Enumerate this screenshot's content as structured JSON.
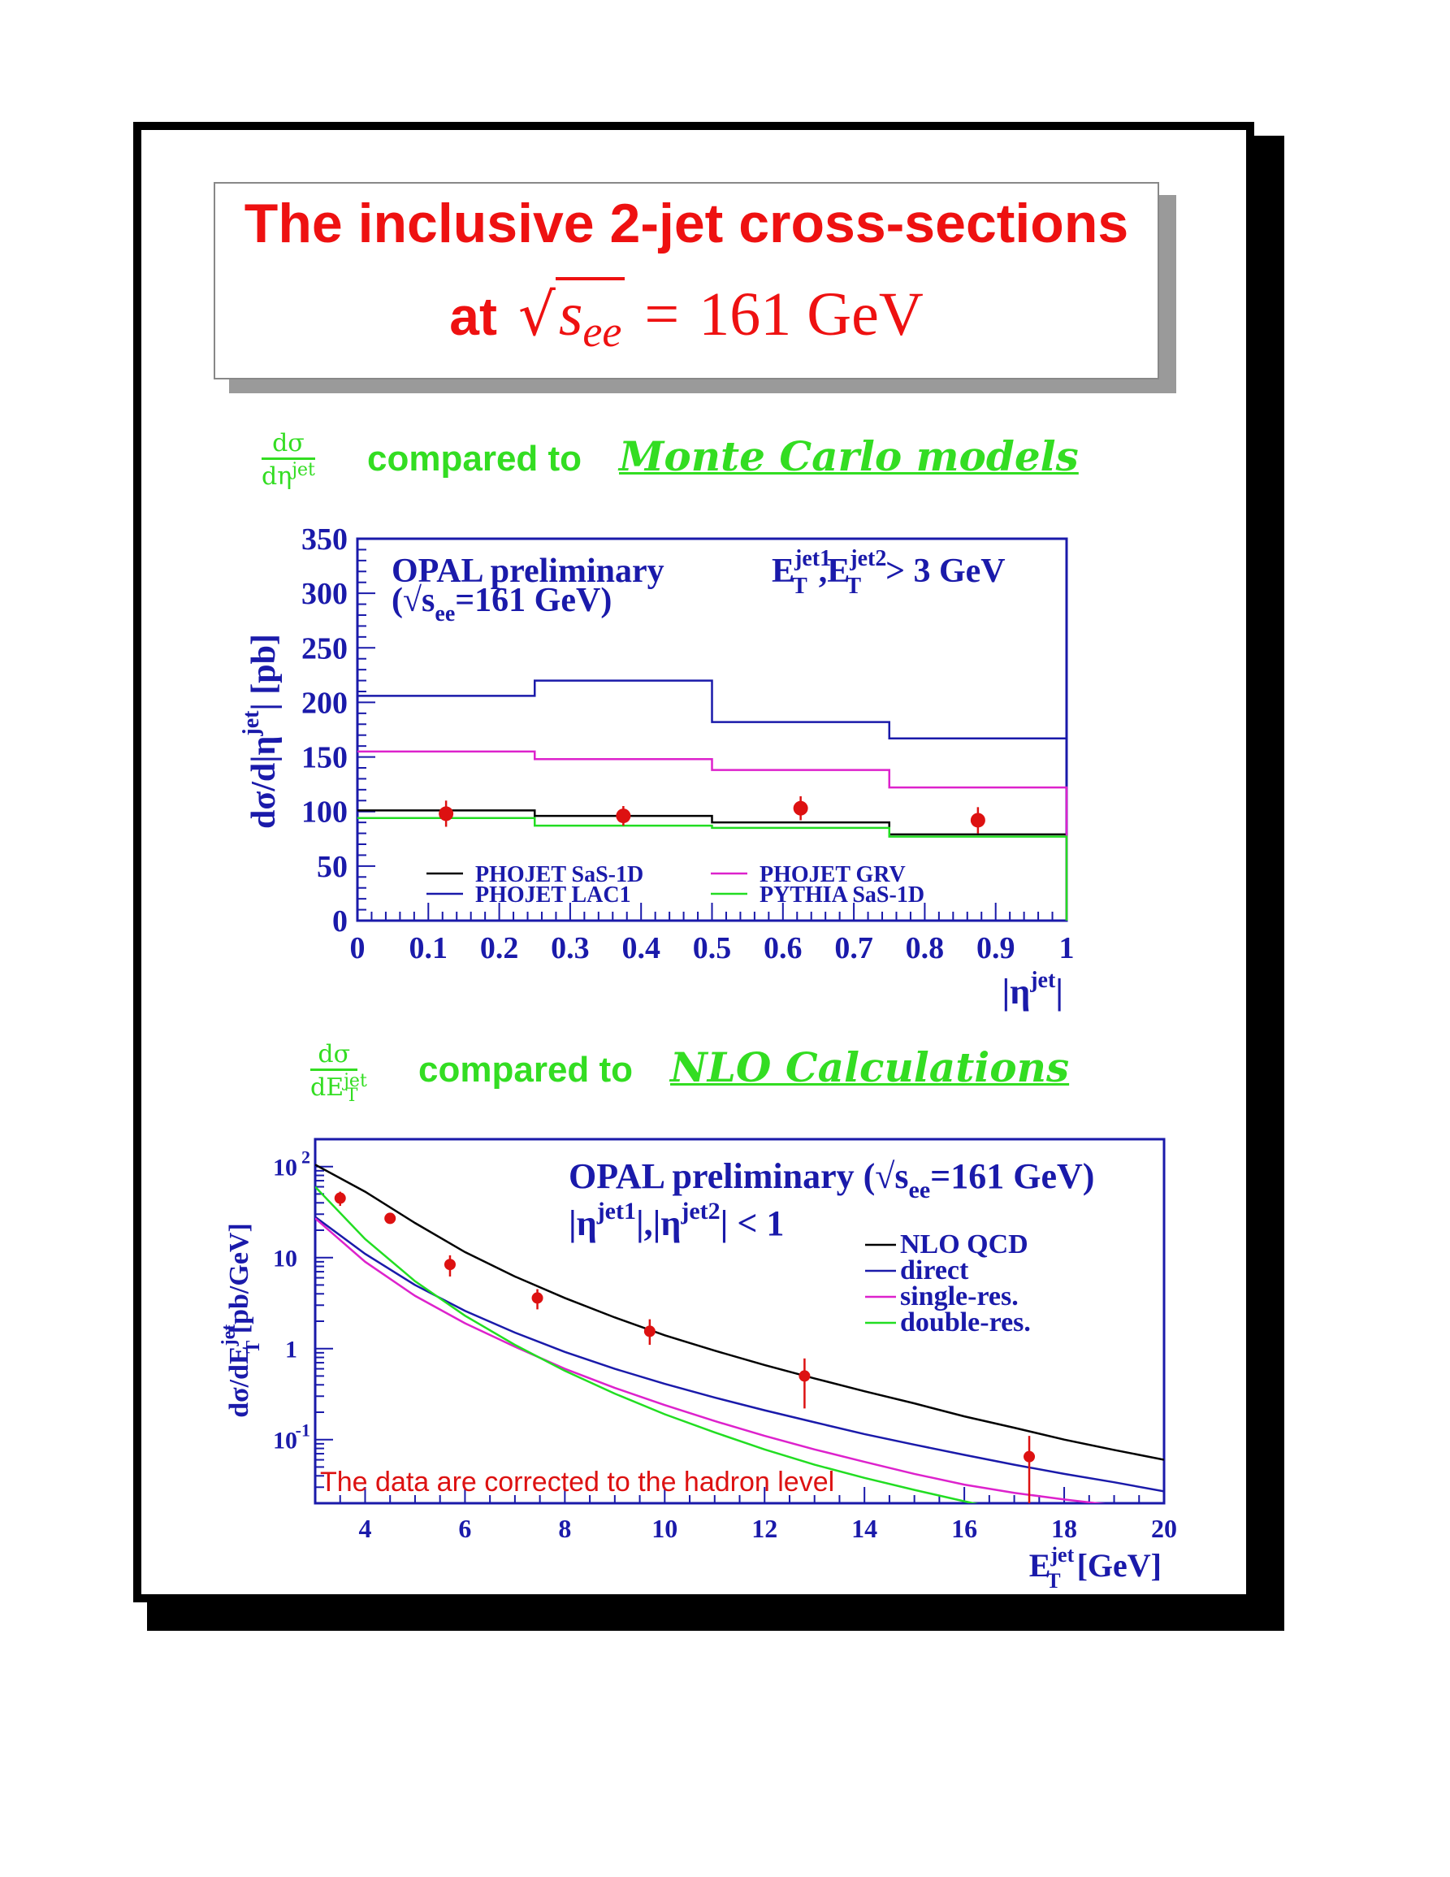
{
  "title": {
    "line1": "The inclusive 2-jet cross-sections",
    "line2_prefix": "at",
    "sqrt_symbol": "√",
    "energy_symbol": "s",
    "energy_sub": "ee",
    "equals": "=",
    "energy_value": "161 GeV"
  },
  "section1": {
    "frac_num": "dσ",
    "frac_den": "dη",
    "frac_den_sup": "jet",
    "text": "compared to",
    "emphasis": "Monte Carlo models"
  },
  "section2": {
    "frac_num": "dσ",
    "frac_den": "dE",
    "frac_den_sup": "jet",
    "frac_den_sub": "T",
    "text": "compared to",
    "emphasis": "NLO Calculations"
  },
  "colors": {
    "title": "#ee1111",
    "section": "#33dd22",
    "axis": "#1a1aaa",
    "data": "#dd1111",
    "black": "#000000",
    "blue": "#1a1aaa",
    "magenta": "#dd22cc",
    "green": "#22dd22"
  },
  "chart_data": [
    {
      "type": "line",
      "title": "OPAL preliminary",
      "subtitle": "(√see=161 GeV)",
      "subtitle_parts": {
        "open": "(√s",
        "sub": "ee",
        "close": "=161 GeV)"
      },
      "cut_label": {
        "e": "E",
        "sup1": "jet1",
        "sub": "T",
        "comma": ",",
        "sup2": "jet2",
        "tail": "> 3 GeV"
      },
      "ylabel_parts": {
        "main": "dσ/d|η",
        "sup": "jet",
        "tail": "| [pb]"
      },
      "xlabel_parts": {
        "main": "|η",
        "sup": "jet",
        "tail": "|"
      },
      "xlim": [
        0,
        1
      ],
      "ylim": [
        0,
        350
      ],
      "x_ticks": [
        "0",
        "0.1",
        "0.2",
        "0.3",
        "0.4",
        "0.5",
        "0.6",
        "0.7",
        "0.8",
        "0.9",
        "1"
      ],
      "y_ticks": [
        "0",
        "50",
        "100",
        "150",
        "200",
        "250",
        "300",
        "350"
      ],
      "bin_edges": [
        0,
        0.25,
        0.5,
        0.75,
        1.0
      ],
      "series": [
        {
          "name": "PHOJET SaS-1D",
          "color": "#000000",
          "values": [
            101,
            96,
            90,
            79
          ]
        },
        {
          "name": "PHOJET LAC1",
          "color": "#1a1aaa",
          "values": [
            206,
            220,
            182,
            167
          ]
        },
        {
          "name": "PHOJET GRV",
          "color": "#dd22cc",
          "values": [
            155,
            148,
            138,
            122
          ]
        },
        {
          "name": "PYTHIA SaS-1D",
          "color": "#22dd22",
          "values": [
            94,
            87,
            85,
            77
          ]
        }
      ],
      "data": {
        "x": [
          0.125,
          0.375,
          0.625,
          0.875
        ],
        "y": [
          98,
          96,
          103,
          92
        ],
        "err": [
          12,
          9,
          11,
          12
        ]
      },
      "legend": "bottom"
    },
    {
      "type": "line",
      "title": "OPAL preliminary",
      "title_parts": {
        "main": "OPAL preliminary (√s",
        "sub": "ee",
        "tail": "=161 GeV)"
      },
      "cut_label": {
        "open": "|η",
        "sup1": "jet1",
        "mid": "|,|η",
        "sup2": "jet2",
        "tail": "| < 1"
      },
      "ylabel_parts": {
        "main": "dσ/dE",
        "sup": "jet",
        "sub": "T",
        "tail": " [pb/GeV]"
      },
      "xlabel_parts": {
        "main": "E",
        "sup": "jet",
        "sub": "T",
        "tail": " [GeV]"
      },
      "annotation": "The data are corrected to the hadron level",
      "yscale": "log",
      "xlim": [
        3,
        20
      ],
      "ylim": [
        0.02,
        200
      ],
      "x_ticks": [
        "4",
        "6",
        "8",
        "10",
        "12",
        "14",
        "16",
        "18",
        "20"
      ],
      "y_ticks": [
        {
          "value": 100,
          "base": "10",
          "exp": "2"
        },
        {
          "value": 10,
          "base": "10",
          "exp": ""
        },
        {
          "value": 1,
          "base": "1",
          "exp": ""
        },
        {
          "value": 0.1,
          "base": "10",
          "exp": "-1"
        }
      ],
      "series": [
        {
          "name": "NLO QCD",
          "color": "#000000",
          "x": [
            3,
            4,
            5,
            6,
            7,
            8,
            9,
            10,
            11,
            12,
            13,
            14,
            15,
            16,
            17,
            18,
            19,
            20
          ],
          "y": [
            105,
            53,
            24,
            11.5,
            6.2,
            3.6,
            2.2,
            1.4,
            0.95,
            0.66,
            0.47,
            0.34,
            0.25,
            0.18,
            0.135,
            0.1,
            0.077,
            0.06
          ]
        },
        {
          "name": "direct",
          "color": "#1a1aaa",
          "x": [
            3,
            4,
            5,
            6,
            7,
            8,
            9,
            10,
            11,
            12,
            13,
            14,
            15,
            16,
            17,
            18,
            19,
            20
          ],
          "y": [
            28,
            11,
            5,
            2.6,
            1.5,
            0.92,
            0.6,
            0.41,
            0.29,
            0.21,
            0.155,
            0.115,
            0.088,
            0.068,
            0.053,
            0.042,
            0.034,
            0.027
          ]
        },
        {
          "name": "single-res.",
          "color": "#dd22cc",
          "x": [
            3,
            4,
            5,
            6,
            7,
            8,
            9,
            10,
            11,
            12,
            13,
            14,
            15,
            16,
            17,
            18,
            19
          ],
          "y": [
            27,
            9,
            3.8,
            1.9,
            1.05,
            0.6,
            0.37,
            0.24,
            0.16,
            0.11,
            0.078,
            0.057,
            0.042,
            0.032,
            0.026,
            0.022,
            0.019
          ]
        },
        {
          "name": "double-res.",
          "color": "#22dd22",
          "x": [
            3,
            4,
            5,
            6,
            7,
            8,
            9,
            10,
            11,
            12,
            13,
            14,
            15,
            16,
            17
          ],
          "y": [
            60,
            16,
            5.5,
            2.3,
            1.1,
            0.57,
            0.32,
            0.19,
            0.12,
            0.078,
            0.053,
            0.038,
            0.028,
            0.021,
            0.016
          ]
        }
      ],
      "data": {
        "x": [
          3.5,
          4.5,
          5.7,
          7.45,
          9.7,
          12.8,
          17.3
        ],
        "y": [
          45,
          27,
          8.4,
          3.6,
          1.55,
          0.5,
          0.065
        ],
        "err_lo": [
          8,
          3,
          2.2,
          0.9,
          0.45,
          0.28,
          0.045
        ],
        "err_hi": [
          8,
          3,
          2.2,
          0.9,
          0.55,
          0.28,
          0.045
        ]
      },
      "legend": "top-right"
    }
  ]
}
